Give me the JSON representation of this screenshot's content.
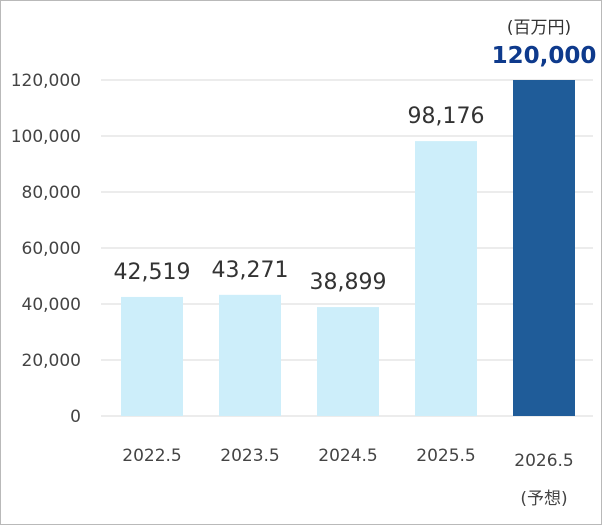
{
  "chart_data": {
    "type": "bar",
    "categories": [
      "2022.5",
      "2023.5",
      "2024.5",
      "2025.5",
      "2026.5"
    ],
    "values": [
      42519,
      43271,
      38899,
      98176,
      120000
    ],
    "value_labels": [
      "42,519",
      "43,271",
      "38,899",
      "98,176",
      "120,000"
    ],
    "category_notes": [
      "",
      "",
      "",
      "",
      "(予想)"
    ],
    "highlight_index": 4,
    "unit": "(百万円)",
    "ylim": [
      0,
      120000
    ],
    "yticks": [
      0,
      20000,
      40000,
      60000,
      80000,
      100000,
      120000
    ],
    "ytick_labels": [
      "0",
      "20,000",
      "40,000",
      "60,000",
      "80,000",
      "100,000",
      "120,000"
    ],
    "grid": true,
    "title": "",
    "xlabel": "",
    "ylabel": "",
    "colors": {
      "bar": "#cdeefa",
      "highlight_bar": "#1f5c99",
      "grid": "#d9d9d9",
      "highlight_text": "#0e3a8c"
    }
  }
}
